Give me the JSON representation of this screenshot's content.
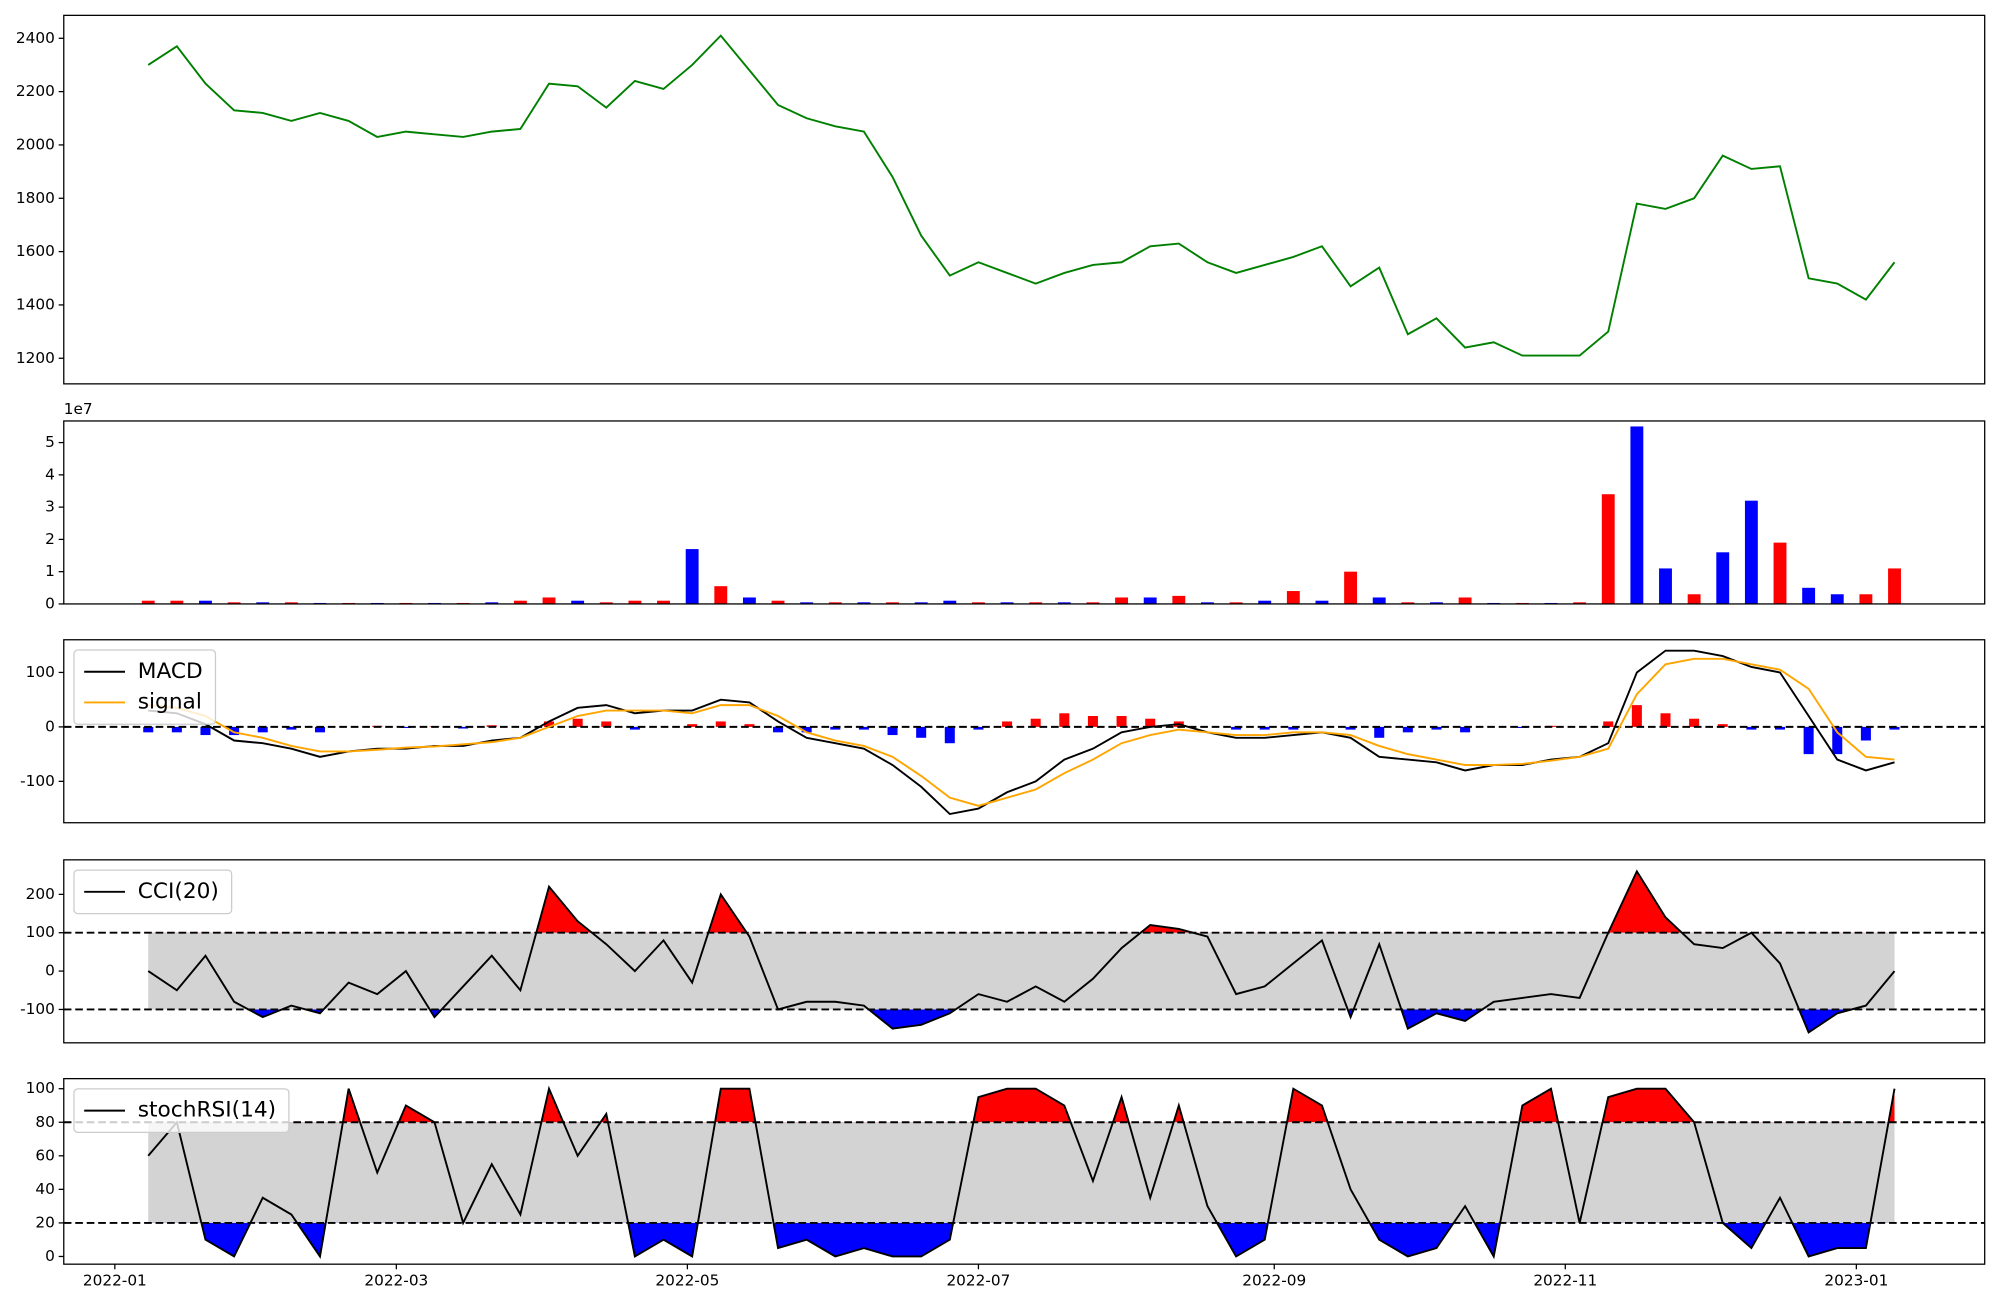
{
  "chart_data": [
    {
      "type": "line",
      "color": "#008000",
      "x": [
        7,
        13,
        19,
        25,
        31,
        37,
        43,
        49,
        55,
        61,
        67,
        73,
        79,
        85,
        91,
        97,
        103,
        109,
        115,
        121,
        127,
        133,
        139,
        145,
        151,
        157,
        163,
        169,
        175,
        181,
        187,
        193,
        199,
        205,
        211,
        217,
        223,
        229,
        235,
        241,
        247,
        253,
        259,
        265,
        271,
        277,
        283,
        289,
        295,
        301,
        307,
        313,
        319,
        325,
        331,
        337,
        343,
        349,
        355,
        361,
        367,
        373
      ],
      "values": [
        2300,
        2370,
        2230,
        2130,
        2120,
        2090,
        2120,
        2090,
        2030,
        2050,
        2040,
        2030,
        2050,
        2060,
        2230,
        2220,
        2140,
        2240,
        2210,
        2300,
        2410,
        2280,
        2150,
        2100,
        2070,
        2050,
        1880,
        1660,
        1510,
        1560,
        1520,
        1480,
        1520,
        1550,
        1560,
        1620,
        1630,
        1560,
        1520,
        1550,
        1580,
        1620,
        1470,
        1540,
        1290,
        1350,
        1240,
        1260,
        1210,
        1210,
        1210,
        1300,
        1780,
        1760,
        1800,
        1960,
        1910,
        1920,
        1500,
        1480,
        1420,
        1560
      ],
      "xlim": [
        -10.7,
        391.9
      ],
      "ylim": [
        1104,
        2486
      ],
      "yticks": [
        1200,
        1400,
        1600,
        1800,
        2000,
        2200,
        2400
      ]
    },
    {
      "type": "bar",
      "offset_label": "1e7",
      "x": [
        7,
        13,
        19,
        25,
        31,
        37,
        43,
        49,
        55,
        61,
        67,
        73,
        79,
        85,
        91,
        97,
        103,
        109,
        115,
        121,
        127,
        133,
        139,
        145,
        151,
        157,
        163,
        169,
        175,
        181,
        187,
        193,
        199,
        205,
        211,
        217,
        223,
        229,
        235,
        241,
        247,
        253,
        259,
        265,
        271,
        277,
        283,
        289,
        295,
        301,
        307,
        313,
        319,
        325,
        331,
        337,
        343,
        349,
        355,
        361,
        367,
        373
      ],
      "values": [
        0.1,
        0.1,
        0.1,
        0.05,
        0.05,
        0.05,
        0.03,
        0.03,
        0.03,
        0.03,
        0.03,
        0.03,
        0.05,
        0.1,
        0.2,
        0.1,
        0.05,
        0.1,
        0.1,
        1.7,
        0.55,
        0.2,
        0.1,
        0.05,
        0.05,
        0.05,
        0.05,
        0.05,
        0.1,
        0.05,
        0.05,
        0.05,
        0.05,
        0.05,
        0.2,
        0.2,
        0.25,
        0.05,
        0.05,
        0.1,
        0.4,
        0.1,
        1.0,
        0.2,
        0.05,
        0.05,
        0.2,
        0.03,
        0.03,
        0.03,
        0.05,
        3.4,
        5.5,
        1.1,
        0.3,
        1.6,
        3.2,
        1.9,
        0.5,
        0.3,
        0.3,
        1.1
      ],
      "colors": [
        "#ff0000",
        "#ff0000",
        "#0000ff",
        "#ff0000",
        "#0000ff",
        "#ff0000",
        "#0000ff",
        "#ff0000",
        "#0000ff",
        "#ff0000",
        "#0000ff",
        "#ff0000",
        "#0000ff",
        "#ff0000",
        "#ff0000",
        "#0000ff",
        "#ff0000",
        "#ff0000",
        "#ff0000",
        "#0000ff",
        "#ff0000",
        "#0000ff",
        "#ff0000",
        "#0000ff",
        "#ff0000",
        "#0000ff",
        "#ff0000",
        "#0000ff",
        "#0000ff",
        "#ff0000",
        "#0000ff",
        "#ff0000",
        "#0000ff",
        "#ff0000",
        "#ff0000",
        "#0000ff",
        "#ff0000",
        "#0000ff",
        "#ff0000",
        "#0000ff",
        "#ff0000",
        "#0000ff",
        "#ff0000",
        "#0000ff",
        "#ff0000",
        "#0000ff",
        "#ff0000",
        "#0000ff",
        "#ff0000",
        "#0000ff",
        "#ff0000",
        "#ff0000",
        "#0000ff",
        "#0000ff",
        "#ff0000",
        "#0000ff",
        "#0000ff",
        "#ff0000",
        "#0000ff",
        "#0000ff",
        "#ff0000",
        "#ff0000"
      ],
      "xlim": [
        -10.7,
        391.9
      ],
      "ylim": [
        0,
        5.67
      ],
      "yticks": [
        0,
        1,
        2,
        3,
        4,
        5
      ]
    },
    {
      "type": "macd",
      "legend": "upper left",
      "hlines": [
        0
      ],
      "x": [
        7,
        13,
        19,
        25,
        31,
        37,
        43,
        49,
        55,
        61,
        67,
        73,
        79,
        85,
        91,
        97,
        103,
        109,
        115,
        121,
        127,
        133,
        139,
        145,
        151,
        157,
        163,
        169,
        175,
        181,
        187,
        193,
        199,
        205,
        211,
        217,
        223,
        229,
        235,
        241,
        247,
        253,
        259,
        265,
        271,
        277,
        283,
        289,
        295,
        301,
        307,
        313,
        319,
        325,
        331,
        337,
        343,
        349,
        355,
        361,
        367,
        373
      ],
      "series": [
        {
          "name": "MACD",
          "color": "#000000",
          "values": [
            30,
            25,
            5,
            -25,
            -30,
            -40,
            -55,
            -45,
            -40,
            -40,
            -35,
            -35,
            -25,
            -20,
            10,
            35,
            40,
            25,
            30,
            30,
            50,
            45,
            10,
            -20,
            -30,
            -40,
            -70,
            -110,
            -160,
            -150,
            -120,
            -100,
            -60,
            -40,
            -10,
            0,
            5,
            -10,
            -20,
            -20,
            -15,
            -10,
            -20,
            -55,
            -60,
            -65,
            -80,
            -70,
            -70,
            -60,
            -55,
            -30,
            100,
            140,
            140,
            130,
            110,
            100,
            20,
            -60,
            -80,
            -65
          ]
        },
        {
          "name": "signal",
          "color": "#ffa500",
          "values": [
            40,
            35,
            20,
            -10,
            -20,
            -35,
            -45,
            -45,
            -42,
            -38,
            -36,
            -32,
            -28,
            -20,
            0,
            20,
            30,
            30,
            30,
            25,
            40,
            40,
            20,
            -10,
            -25,
            -35,
            -55,
            -90,
            -130,
            -145,
            -130,
            -115,
            -85,
            -60,
            -30,
            -15,
            -5,
            -10,
            -15,
            -15,
            -10,
            -10,
            -15,
            -35,
            -50,
            -60,
            -70,
            -70,
            -68,
            -62,
            -55,
            -40,
            60,
            115,
            125,
            125,
            115,
            105,
            70,
            -10,
            -55,
            -60
          ]
        }
      ],
      "histogram": [
        -10,
        -10,
        -15,
        -15,
        -10,
        -5,
        -10,
        0,
        2,
        -2,
        1,
        -3,
        3,
        0,
        10,
        15,
        10,
        -5,
        0,
        5,
        10,
        5,
        -10,
        -10,
        -5,
        -5,
        -15,
        -20,
        -30,
        -5,
        10,
        15,
        25,
        20,
        20,
        15,
        10,
        0,
        -5,
        -5,
        -5,
        0,
        -5,
        -20,
        -10,
        -5,
        -10,
        0,
        -2,
        2,
        0,
        10,
        40,
        25,
        15,
        5,
        -5,
        -5,
        -50,
        -50,
        -25,
        -5
      ],
      "positive_color": "#ff0000",
      "negative_color": "#0000ff",
      "xlim": [
        -10.7,
        391.9
      ],
      "ylim": [
        -176,
        160
      ],
      "yticks": [
        -100,
        0,
        100
      ]
    },
    {
      "type": "oscillator",
      "legend": "upper left",
      "x": [
        7,
        13,
        19,
        25,
        31,
        37,
        43,
        49,
        55,
        61,
        67,
        73,
        79,
        85,
        91,
        97,
        103,
        109,
        115,
        121,
        127,
        133,
        139,
        145,
        151,
        157,
        163,
        169,
        175,
        181,
        187,
        193,
        199,
        205,
        211,
        217,
        223,
        229,
        235,
        241,
        247,
        253,
        259,
        265,
        271,
        277,
        283,
        289,
        295,
        301,
        307,
        313,
        319,
        325,
        331,
        337,
        343,
        349,
        355,
        361,
        367,
        373
      ],
      "series": [
        {
          "name": "CCI(20)",
          "color": "#000000",
          "values": [
            0,
            -50,
            40,
            -80,
            -120,
            -90,
            -110,
            -30,
            -60,
            0,
            -120,
            -40,
            40,
            -50,
            220,
            130,
            70,
            0,
            80,
            -30,
            200,
            90,
            -100,
            -80,
            -80,
            -90,
            -150,
            -140,
            -110,
            -60,
            -80,
            -40,
            -80,
            -20,
            60,
            120,
            110,
            90,
            -60,
            -40,
            20,
            80,
            -120,
            70,
            -150,
            -110,
            -130,
            -80,
            -70,
            -60,
            -70,
            100,
            260,
            140,
            70,
            60,
            100,
            20,
            -160,
            -110,
            -90,
            0
          ]
        }
      ],
      "bands": [
        -100,
        100
      ],
      "band_color": "#d3d3d3",
      "above_color": "#ff0000",
      "below_color": "#0000ff",
      "xlim": [
        -10.7,
        391.9
      ],
      "ylim": [
        -187,
        290
      ],
      "yticks": [
        -100,
        0,
        100,
        200
      ]
    },
    {
      "type": "oscillator",
      "legend": "upper left",
      "x": [
        7,
        13,
        19,
        25,
        31,
        37,
        43,
        49,
        55,
        61,
        67,
        73,
        79,
        85,
        91,
        97,
        103,
        109,
        115,
        121,
        127,
        133,
        139,
        145,
        151,
        157,
        163,
        169,
        175,
        181,
        187,
        193,
        199,
        205,
        211,
        217,
        223,
        229,
        235,
        241,
        247,
        253,
        259,
        265,
        271,
        277,
        283,
        289,
        295,
        301,
        307,
        313,
        319,
        325,
        331,
        337,
        343,
        349,
        355,
        361,
        367,
        373
      ],
      "series": [
        {
          "name": "stochRSI(14)",
          "color": "#000000",
          "values": [
            60,
            80,
            10,
            0,
            35,
            25,
            0,
            100,
            50,
            90,
            80,
            20,
            55,
            25,
            100,
            60,
            85,
            0,
            10,
            0,
            100,
            100,
            5,
            10,
            0,
            5,
            0,
            0,
            10,
            95,
            100,
            100,
            90,
            45,
            95,
            35,
            90,
            30,
            0,
            10,
            100,
            90,
            40,
            10,
            0,
            5,
            30,
            0,
            90,
            100,
            20,
            95,
            100,
            100,
            80,
            20,
            5,
            35,
            0,
            5,
            5,
            100
          ]
        }
      ],
      "bands": [
        20,
        80
      ],
      "band_color": "#d3d3d3",
      "above_color": "#ff0000",
      "below_color": "#0000ff",
      "xlim": [
        -10.7,
        391.9
      ],
      "ylim": [
        -4.6,
        106
      ],
      "yticks": [
        0,
        20,
        40,
        60,
        80,
        100
      ],
      "xticks": [
        {
          "value": 0,
          "label": "2022-01"
        },
        {
          "value": 59,
          "label": "2022-03"
        },
        {
          "value": 120,
          "label": "2022-05"
        },
        {
          "value": 181,
          "label": "2022-07"
        },
        {
          "value": 243,
          "label": "2022-09"
        },
        {
          "value": 304,
          "label": "2022-11"
        },
        {
          "value": 365,
          "label": "2023-01"
        }
      ]
    }
  ]
}
